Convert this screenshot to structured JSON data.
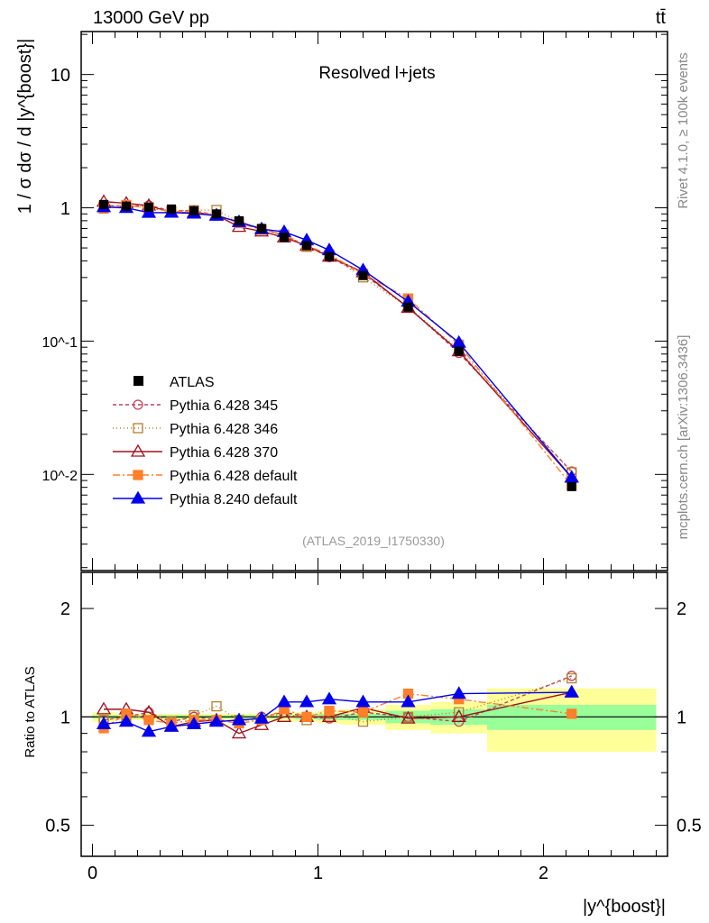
{
  "chart_data": [
    {
      "type": "line",
      "title": "Resolved l+jets",
      "header_left": "13000 GeV pp",
      "header_right": "tt̄",
      "ylabel": "1 / σ dσ / d |y^{boost}|",
      "yscale": "log",
      "ylim": [
        0.0019,
        21
      ],
      "xlim": [
        -0.05,
        2.55
      ],
      "yticks": [
        {
          "v": 10,
          "label": "10"
        },
        {
          "v": 1,
          "label": "1"
        },
        {
          "v": 0.1,
          "label": "10^-1"
        },
        {
          "v": 0.01,
          "label": "10^-2"
        }
      ],
      "analysis": "(ATLAS_2019_I1750330)",
      "side_label_top": "Rivet 4.1.0, ≥ 100k events",
      "side_label_bottom": "mcplots.cern.ch [arXiv:1306.3436]",
      "legend_position": "bottom-left",
      "x": [
        0.05,
        0.15,
        0.25,
        0.35,
        0.45,
        0.55,
        0.65,
        0.75,
        0.85,
        0.95,
        1.05,
        1.2,
        1.4,
        1.625,
        2.125
      ],
      "bins": [
        [
          0,
          0.1
        ],
        [
          0.1,
          0.2
        ],
        [
          0.2,
          0.3
        ],
        [
          0.3,
          0.4
        ],
        [
          0.4,
          0.5
        ],
        [
          0.5,
          0.6
        ],
        [
          0.6,
          0.7
        ],
        [
          0.7,
          0.8
        ],
        [
          0.8,
          0.9
        ],
        [
          0.9,
          1.0
        ],
        [
          1.0,
          1.1
        ],
        [
          1.1,
          1.3
        ],
        [
          1.3,
          1.5
        ],
        [
          1.5,
          1.75
        ],
        [
          1.75,
          2.5
        ]
      ],
      "atlas": {
        "name": "ATLAS",
        "values": [
          1.06,
          1.03,
          1.01,
          0.98,
          0.95,
          0.9,
          0.8,
          0.7,
          0.6,
          0.52,
          0.43,
          0.31,
          0.18,
          0.084,
          0.0081
        ]
      },
      "series": [
        {
          "name": "Pythia 6.428 345",
          "color": "#c0405a",
          "dash": "4,3",
          "marker": "circle-open",
          "ratio": [
            0.98,
            1.0,
            1.03,
            0.97,
            1.0,
            0.98,
            0.97,
            1.0,
            1.03,
            1.0,
            0.99,
            1.03,
            1.0,
            0.97,
            1.3
          ]
        },
        {
          "name": "Pythia 6.428 346",
          "color": "#b08030",
          "dash": "1,3",
          "marker": "square-open",
          "ratio": [
            0.98,
            1.0,
            1.0,
            0.97,
            1.01,
            1.07,
            0.98,
            0.98,
            1.03,
            0.98,
            1.02,
            0.97,
            1.0,
            1.03,
            1.28
          ]
        },
        {
          "name": "Pythia 6.428 370",
          "color": "#a01020",
          "dash": "",
          "marker": "triangle-open",
          "ratio": [
            1.05,
            1.05,
            1.03,
            0.94,
            0.97,
            0.98,
            0.9,
            0.95,
            1.0,
            1.0,
            1.0,
            1.06,
            0.99,
            1.0,
            1.17
          ]
        },
        {
          "name": "Pythia 6.428 default",
          "color": "#ff7f2a",
          "dash": "8,3,2,3",
          "marker": "square-filled",
          "ratio": [
            0.93,
            1.02,
            0.98,
            0.96,
            0.98,
            0.98,
            0.96,
            0.98,
            1.05,
            1.0,
            1.04,
            1.03,
            1.16,
            1.12,
            1.02
          ]
        },
        {
          "name": "Pythia 8.240 default",
          "color": "#0000ee",
          "dash": "",
          "marker": "triangle-filled",
          "ratio": [
            0.955,
            0.97,
            0.91,
            0.94,
            0.955,
            0.97,
            0.98,
            0.99,
            1.1,
            1.1,
            1.12,
            1.1,
            1.1,
            1.16,
            1.17
          ]
        }
      ]
    },
    {
      "type": "line",
      "ylabel": "Ratio to ATLAS",
      "xlabel": "|y^{boost}|",
      "yscale": "log",
      "ylim": [
        0.41,
        2.52
      ],
      "yticks": [
        {
          "v": 2,
          "label": "2"
        },
        {
          "v": 1,
          "label": "1"
        },
        {
          "v": 0.5,
          "label": "0.5"
        }
      ],
      "xticks": [
        {
          "v": 0,
          "label": "0"
        },
        {
          "v": 1,
          "label": "1"
        },
        {
          "v": 2,
          "label": "2"
        }
      ],
      "stat_band": [
        0.01,
        0.01,
        0.01,
        0.01,
        0.01,
        0.01,
        0.01,
        0.01,
        0.01,
        0.015,
        0.02,
        0.02,
        0.04,
        0.05,
        0.08
      ],
      "total_band": [
        0.03,
        0.02,
        0.02,
        0.02,
        0.02,
        0.02,
        0.02,
        0.02,
        0.03,
        0.03,
        0.04,
        0.05,
        0.08,
        0.1,
        0.2
      ]
    }
  ]
}
